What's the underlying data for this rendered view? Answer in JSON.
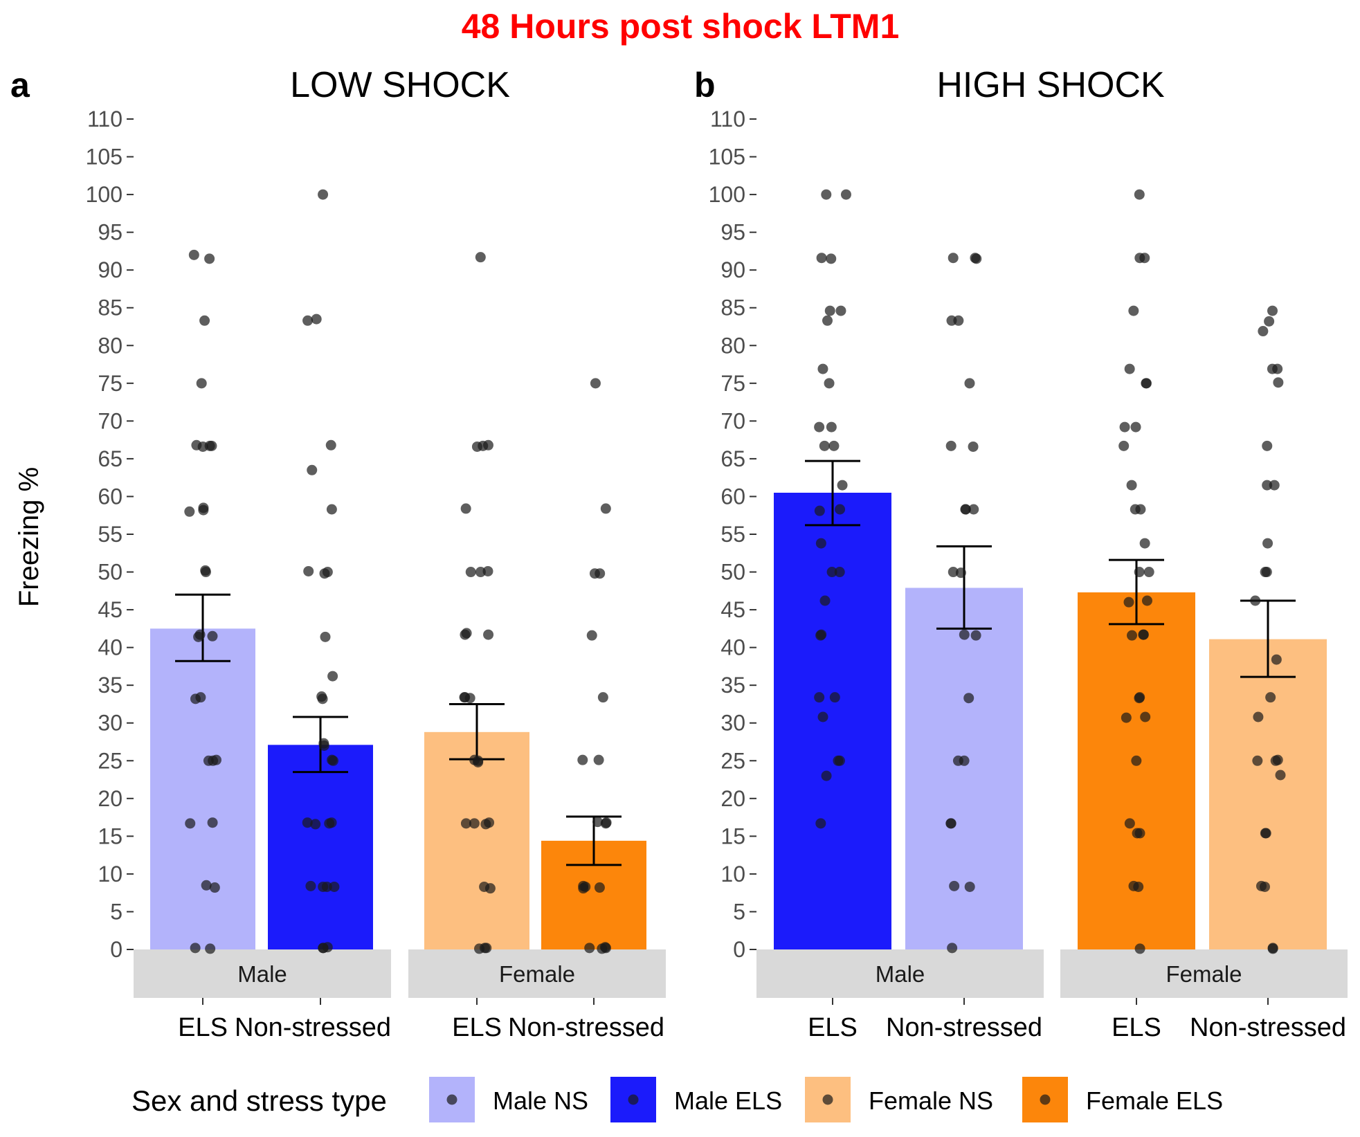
{
  "title": "48 Hours post shock LTM1",
  "legend": {
    "title": "Sex and stress type",
    "entries": [
      {
        "key": "male_ns",
        "label": "Male NS"
      },
      {
        "key": "male_els",
        "label": "Male ELS"
      },
      {
        "key": "female_ns",
        "label": "Female NS"
      },
      {
        "key": "female_els",
        "label": "Female ELS"
      }
    ]
  },
  "colors": {
    "male_ns": "#b3b3fb",
    "male_els": "#1b1bfb",
    "female_ns": "#fdbf80",
    "female_els": "#fc860b",
    "point": "#1a1a1a",
    "strip": "#d9d9d9"
  },
  "chart_data": [
    {
      "type": "bar",
      "panel_letter": "a",
      "title": "LOW SHOCK",
      "ylabel": "Freezing %",
      "ylim": [
        0,
        110
      ],
      "yticks": [
        0,
        5,
        10,
        15,
        20,
        25,
        30,
        35,
        40,
        45,
        50,
        55,
        60,
        65,
        70,
        75,
        80,
        85,
        90,
        95,
        100,
        105,
        110
      ],
      "groups": [
        {
          "sex": "Male",
          "bars": [
            {
              "category": "ELS",
              "fill": "male_ns",
              "mean": 42.5,
              "err_low": 38.2,
              "err_high": 47.0,
              "points": [
                92,
                91.5,
                83.3,
                75,
                66.8,
                66.7,
                66.7,
                66.6,
                58.5,
                58.2,
                58,
                50.2,
                50,
                41.7,
                41.5,
                41.4,
                33.4,
                33.2,
                25.1,
                25,
                25,
                16.8,
                16.7,
                8.5,
                8.2,
                0.2,
                0.1
              ]
            },
            {
              "category": "Non-stressed",
              "fill": "male_els",
              "mean": 27.1,
              "err_low": 23.5,
              "err_high": 30.8,
              "points": [
                100,
                83.3,
                83.5,
                66.8,
                63.5,
                58.3,
                49.8,
                50,
                50.1,
                41.4,
                36.2,
                33.2,
                33.5,
                27,
                27.3,
                25,
                25.1,
                16.8,
                16.7,
                16.8,
                16.6,
                8.4,
                8.3,
                8.3,
                8.3,
                0.2,
                0.3,
                0.2
              ]
            }
          ]
        },
        {
          "sex": "Female",
          "bars": [
            {
              "category": "ELS",
              "fill": "female_ns",
              "mean": 28.8,
              "err_low": 25.2,
              "err_high": 32.5,
              "points": [
                91.7,
                66.6,
                66.8,
                66.7,
                58.4,
                50,
                50.1,
                50,
                41.7,
                41.7,
                41.9,
                33.4,
                33.4,
                33.3,
                24.8,
                25,
                25.1,
                16.7,
                16.8,
                16.7,
                16.6,
                8.3,
                8.1,
                0.2,
                0.2,
                0.1
              ]
            },
            {
              "category": "Non-stressed",
              "fill": "female_els",
              "mean": 14.4,
              "err_low": 11.2,
              "err_high": 17.6,
              "points": [
                75,
                58.4,
                49.8,
                49.8,
                41.6,
                33.4,
                25.1,
                25.1,
                16.8,
                16.7,
                16.9,
                8.4,
                8.3,
                8.1,
                8.2,
                0.3,
                0.2,
                0.2,
                0.1
              ]
            }
          ]
        }
      ]
    },
    {
      "type": "bar",
      "panel_letter": "b",
      "title": "HIGH SHOCK",
      "ylabel": "",
      "ylim": [
        0,
        110
      ],
      "yticks": [
        0,
        5,
        10,
        15,
        20,
        25,
        30,
        35,
        40,
        45,
        50,
        55,
        60,
        65,
        70,
        75,
        80,
        85,
        90,
        95,
        100,
        105,
        110
      ],
      "groups": [
        {
          "sex": "Male",
          "bars": [
            {
              "category": "ELS",
              "fill": "male_els",
              "mean": 60.5,
              "err_low": 56.2,
              "err_high": 64.7,
              "points": [
                100,
                100,
                91.6,
                91.5,
                84.6,
                84.6,
                83.3,
                76.9,
                75,
                69.2,
                69.2,
                66.7,
                66.7,
                61.5,
                58.3,
                58.1,
                53.8,
                50,
                50,
                46.2,
                41.7,
                41.6,
                33.4,
                33.4,
                30.8,
                25,
                25,
                23,
                16.7
              ]
            },
            {
              "category": "Non-stressed",
              "fill": "male_ns",
              "mean": 47.9,
              "err_low": 42.5,
              "err_high": 53.4,
              "points": [
                91.6,
                91.6,
                91.5,
                83.3,
                83.3,
                75,
                66.6,
                66.7,
                58.3,
                58.3,
                58.3,
                50,
                49.9,
                41.7,
                41.6,
                33.3,
                25,
                25,
                16.7,
                16.7,
                8.3,
                8.4,
                0.2
              ]
            }
          ]
        },
        {
          "sex": "Female",
          "bars": [
            {
              "category": "ELS",
              "fill": "female_els",
              "mean": 47.3,
              "err_low": 43.1,
              "err_high": 51.6,
              "points": [
                100,
                91.6,
                91.6,
                84.6,
                76.9,
                75,
                75,
                69.2,
                69.2,
                66.7,
                61.5,
                58.3,
                58.3,
                53.8,
                50,
                50,
                46.2,
                46,
                41.7,
                41.7,
                41.6,
                33.4,
                33.3,
                30.8,
                30.7,
                25,
                16.7,
                15.4,
                15.4,
                8.3,
                8.4,
                0.1
              ]
            },
            {
              "category": "Non-stressed",
              "fill": "female_ns",
              "mean": 41.1,
              "err_low": 36.1,
              "err_high": 46.2,
              "points": [
                84.6,
                81.9,
                83.2,
                76.9,
                76.9,
                75.1,
                66.7,
                61.5,
                61.5,
                53.8,
                50,
                50,
                46.2,
                38.4,
                33.4,
                30.8,
                25,
                25,
                25.1,
                23.1,
                15.4,
                15.4,
                8.3,
                8.4,
                0.2,
                0.1
              ]
            }
          ]
        }
      ]
    }
  ]
}
